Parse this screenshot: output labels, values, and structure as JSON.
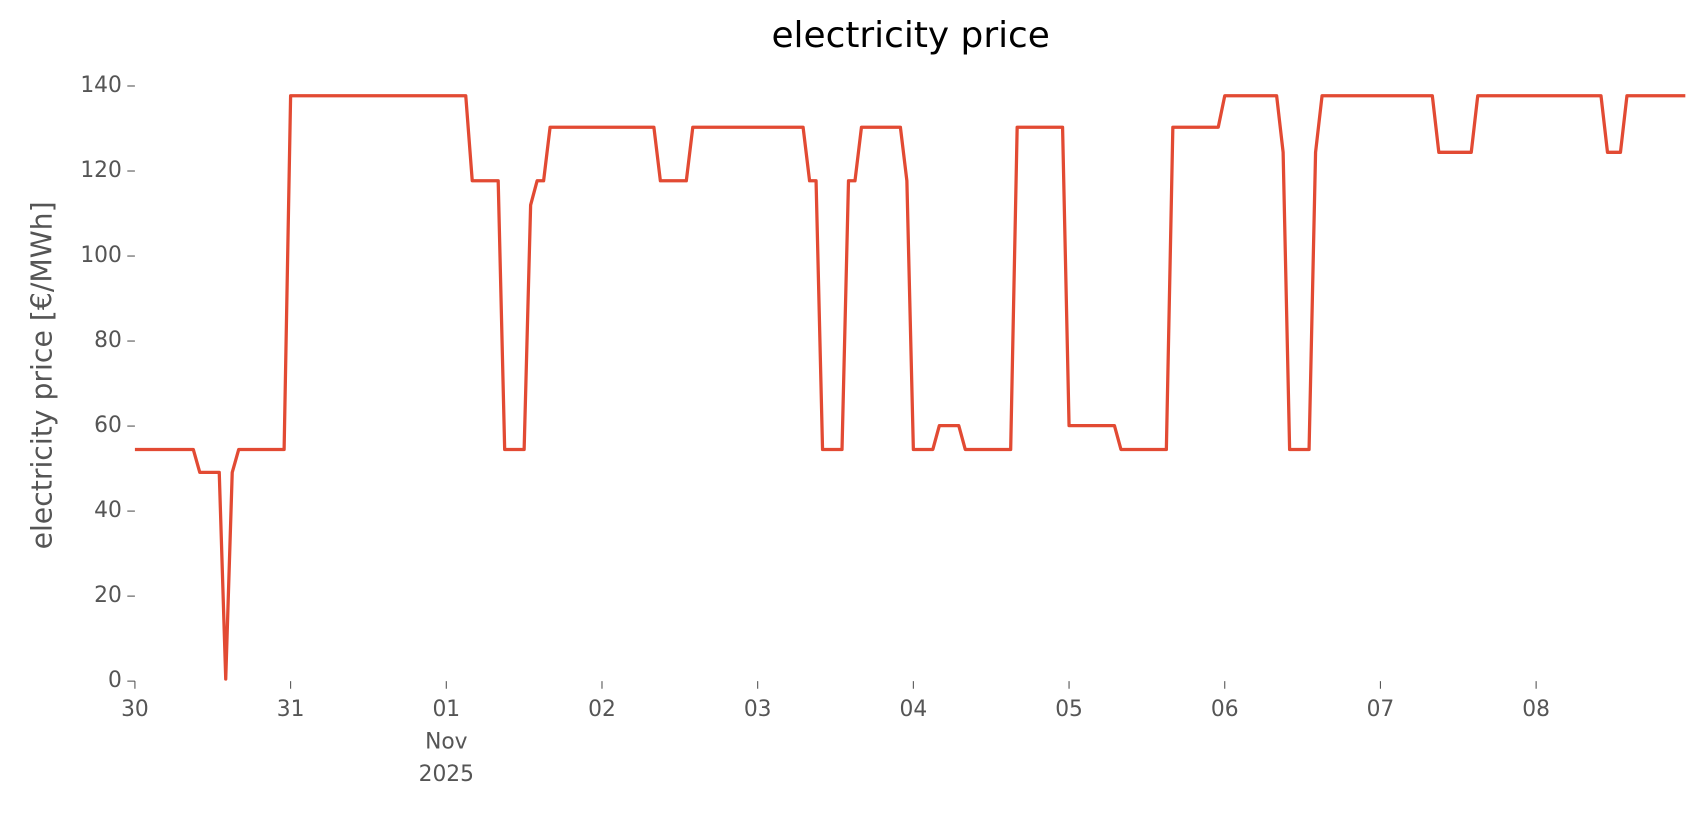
{
  "chart_data": {
    "type": "line",
    "title": "electricity price",
    "ylabel": "electricity price [€/MWh]",
    "x": [
      "2025-10-30T00:00",
      "2025-10-30T09:00",
      "2025-10-30T10:00",
      "2025-10-30T13:00",
      "2025-10-30T14:00",
      "2025-10-30T15:00",
      "2025-10-30T16:00",
      "2025-10-30T23:00",
      "2025-10-31T00:00",
      "2025-11-01T03:00",
      "2025-11-01T04:00",
      "2025-11-01T08:00",
      "2025-11-01T09:00",
      "2025-11-01T12:00",
      "2025-11-01T13:00",
      "2025-11-01T14:00",
      "2025-11-01T15:00",
      "2025-11-01T16:00",
      "2025-11-02T08:00",
      "2025-11-02T09:00",
      "2025-11-02T13:00",
      "2025-11-02T14:00",
      "2025-11-03T07:00",
      "2025-11-03T08:00",
      "2025-11-03T09:00",
      "2025-11-03T10:00",
      "2025-11-03T13:00",
      "2025-11-03T14:00",
      "2025-11-03T15:00",
      "2025-11-03T16:00",
      "2025-11-03T22:00",
      "2025-11-03T23:00",
      "2025-11-04T00:00",
      "2025-11-04T03:00",
      "2025-11-04T04:00",
      "2025-11-04T07:00",
      "2025-11-04T08:00",
      "2025-11-04T15:00",
      "2025-11-04T16:00",
      "2025-11-04T23:00",
      "2025-11-05T00:00",
      "2025-11-05T07:00",
      "2025-11-05T08:00",
      "2025-11-05T15:00",
      "2025-11-05T16:00",
      "2025-11-05T23:00",
      "2025-11-06T00:00",
      "2025-11-06T08:00",
      "2025-11-06T09:00",
      "2025-11-06T10:00",
      "2025-11-06T13:00",
      "2025-11-06T14:00",
      "2025-11-06T15:00",
      "2025-11-07T08:00",
      "2025-11-07T09:00",
      "2025-11-07T14:00",
      "2025-11-07T15:00",
      "2025-11-08T10:00",
      "2025-11-08T11:00",
      "2025-11-08T13:00",
      "2025-11-08T14:00",
      "2025-11-08T23:00"
    ],
    "series": [
      {
        "name": "electricity price",
        "color": "#E24A33",
        "values": [
          54.5,
          54.5,
          49.1,
          49.1,
          0.5,
          49.1,
          54.5,
          54.5,
          137.7,
          137.7,
          117.7,
          117.7,
          54.5,
          54.5,
          112,
          117.7,
          117.7,
          130.3,
          130.3,
          117.7,
          117.7,
          130.3,
          130.3,
          117.7,
          117.7,
          54.5,
          54.5,
          117.7,
          117.7,
          130.3,
          130.3,
          117.7,
          54.5,
          54.5,
          60.1,
          60.1,
          54.5,
          54.5,
          130.3,
          130.3,
          60.1,
          60.1,
          54.5,
          54.5,
          130.3,
          130.3,
          137.7,
          137.7,
          124.4,
          54.5,
          54.5,
          124.4,
          137.7,
          137.7,
          124.4,
          124.4,
          137.7,
          137.7,
          124.4,
          124.4,
          137.7,
          137.7
        ]
      }
    ],
    "xlim": [
      "2025-10-30T00:00",
      "2025-11-08T23:00"
    ],
    "xticks": [
      {
        "value": "2025-10-30T00:00",
        "label": "30"
      },
      {
        "value": "2025-10-31T00:00",
        "label": "31"
      },
      {
        "value": "2025-11-01T00:00",
        "label": "01\nNov\n2025"
      },
      {
        "value": "2025-11-02T00:00",
        "label": "02"
      },
      {
        "value": "2025-11-03T00:00",
        "label": "03"
      },
      {
        "value": "2025-11-04T00:00",
        "label": "04"
      },
      {
        "value": "2025-11-05T00:00",
        "label": "05"
      },
      {
        "value": "2025-11-06T00:00",
        "label": "06"
      },
      {
        "value": "2025-11-07T00:00",
        "label": "07"
      },
      {
        "value": "2025-11-08T00:00",
        "label": "08"
      }
    ],
    "ylim": [
      0,
      140
    ],
    "yticks": [
      0,
      20,
      40,
      60,
      80,
      100,
      120,
      140
    ]
  }
}
